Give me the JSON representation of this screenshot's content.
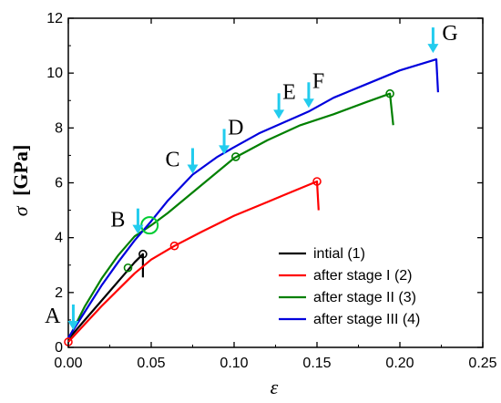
{
  "chart_data": {
    "type": "line",
    "xlabel": "ε",
    "ylabel_symbol": "σ",
    "ylabel_unit": "[GPa]",
    "xlim": [
      0,
      0.25
    ],
    "ylim": [
      0,
      12
    ],
    "xticks": [
      0.0,
      0.05,
      0.1,
      0.15,
      0.2,
      0.25
    ],
    "xtick_labels": [
      "0.00",
      "0.05",
      "0.10",
      "0.15",
      "0.20",
      "0.25"
    ],
    "yticks": [
      0,
      2,
      4,
      6,
      8,
      10,
      12
    ],
    "ytick_labels": [
      "0",
      "2",
      "4",
      "6",
      "8",
      "10",
      "12"
    ],
    "legend_position": "bottom-right",
    "series": [
      {
        "name": "intial (1)",
        "color": "#000000",
        "points": [
          [
            0.0,
            0.3
          ],
          [
            0.01,
            1.0
          ],
          [
            0.02,
            1.7
          ],
          [
            0.03,
            2.4
          ],
          [
            0.035,
            2.75
          ],
          [
            0.04,
            3.1
          ],
          [
            0.045,
            3.4
          ],
          [
            0.045,
            2.55
          ]
        ],
        "markers": [
          [
            0.045,
            3.4
          ]
        ]
      },
      {
        "name": "after stage I (2)",
        "color": "#ff0000",
        "points": [
          [
            0.0,
            0.2
          ],
          [
            0.01,
            0.85
          ],
          [
            0.02,
            1.5
          ],
          [
            0.03,
            2.1
          ],
          [
            0.04,
            2.7
          ],
          [
            0.05,
            3.2
          ],
          [
            0.064,
            3.7
          ],
          [
            0.08,
            4.2
          ],
          [
            0.1,
            4.8
          ],
          [
            0.12,
            5.3
          ],
          [
            0.13,
            5.55
          ],
          [
            0.14,
            5.8
          ],
          [
            0.15,
            6.05
          ],
          [
            0.151,
            5.0
          ]
        ],
        "markers": [
          [
            0.0,
            0.2
          ],
          [
            0.064,
            3.7
          ],
          [
            0.15,
            6.05
          ]
        ]
      },
      {
        "name": "after stage II (3)",
        "color": "#008000",
        "points": [
          [
            0.0,
            0.3
          ],
          [
            0.01,
            1.5
          ],
          [
            0.02,
            2.5
          ],
          [
            0.03,
            3.35
          ],
          [
            0.04,
            4.05
          ],
          [
            0.05,
            4.45
          ],
          [
            0.06,
            4.9
          ],
          [
            0.08,
            5.9
          ],
          [
            0.1,
            6.9
          ],
          [
            0.12,
            7.55
          ],
          [
            0.14,
            8.1
          ],
          [
            0.16,
            8.5
          ],
          [
            0.18,
            8.95
          ],
          [
            0.194,
            9.25
          ],
          [
            0.196,
            8.1
          ]
        ],
        "markers": [
          [
            0.036,
            2.9
          ],
          [
            0.101,
            6.95
          ],
          [
            0.194,
            9.25
          ]
        ]
      },
      {
        "name": "after stage III (4)",
        "color": "#0000dd",
        "points": [
          [
            0.0,
            0.35
          ],
          [
            0.01,
            1.3
          ],
          [
            0.02,
            2.25
          ],
          [
            0.03,
            3.1
          ],
          [
            0.04,
            3.9
          ],
          [
            0.05,
            4.6
          ],
          [
            0.06,
            5.35
          ],
          [
            0.075,
            6.3
          ],
          [
            0.09,
            6.95
          ],
          [
            0.1,
            7.3
          ],
          [
            0.115,
            7.8
          ],
          [
            0.13,
            8.2
          ],
          [
            0.145,
            8.6
          ],
          [
            0.16,
            9.1
          ],
          [
            0.18,
            9.6
          ],
          [
            0.2,
            10.1
          ],
          [
            0.222,
            10.5
          ],
          [
            0.223,
            9.3
          ]
        ],
        "markers": []
      }
    ],
    "extra_markers": [
      {
        "x": 0.049,
        "y": 4.45,
        "color": "#00cc33",
        "size": "large"
      }
    ],
    "annotations": [
      {
        "label": "A",
        "x": 0.003,
        "y": 0.5
      },
      {
        "label": "B",
        "x": 0.042,
        "y": 4.0
      },
      {
        "label": "C",
        "x": 0.075,
        "y": 6.2
      },
      {
        "label": "D",
        "x": 0.094,
        "y": 6.9
      },
      {
        "label": "E",
        "x": 0.127,
        "y": 8.2
      },
      {
        "label": "F",
        "x": 0.145,
        "y": 8.6
      },
      {
        "label": "G",
        "x": 0.22,
        "y": 10.6
      }
    ],
    "arrow_color": "#22ccee"
  }
}
